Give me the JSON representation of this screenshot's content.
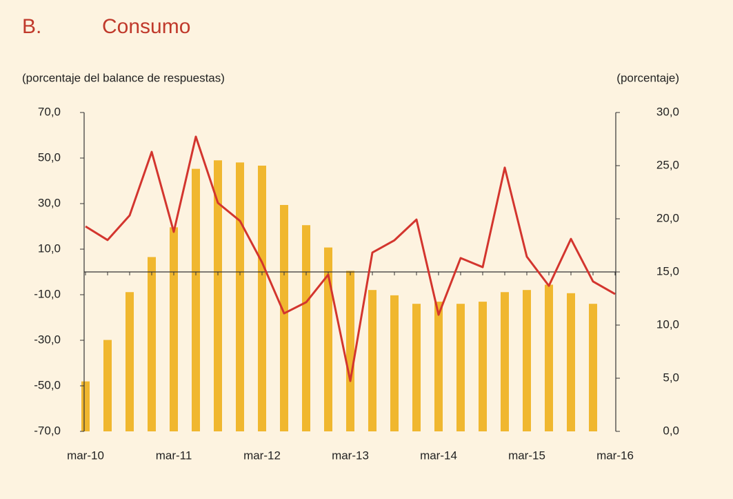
{
  "chart_data": {
    "type": "bar_line",
    "panel": "B.",
    "title": "Consumo",
    "y_label": "(porcentaje del balance de respuestas)",
    "y2_label": "(porcentaje)",
    "categories": [
      "mar-10",
      null,
      null,
      null,
      "mar-11",
      null,
      null,
      null,
      "mar-12",
      null,
      null,
      null,
      "mar-13",
      null,
      null,
      null,
      "mar-14",
      null,
      null,
      null,
      "mar-15",
      null,
      null,
      null,
      "mar-16"
    ],
    "ylim": [
      -70,
      70
    ],
    "yticks": [
      {
        "value": -70,
        "label": "-70,0"
      },
      {
        "value": -50,
        "label": "-50,0"
      },
      {
        "value": -30,
        "label": "-30,0"
      },
      {
        "value": -10,
        "label": "-10,0"
      },
      {
        "value": 10,
        "label": "10,0"
      },
      {
        "value": 30,
        "label": "30,0"
      },
      {
        "value": 50,
        "label": "50,0"
      },
      {
        "value": 70,
        "label": "70,0"
      }
    ],
    "y2lim": [
      0,
      30
    ],
    "y2ticks": [
      {
        "value": 0,
        "label": "0,0"
      },
      {
        "value": 5,
        "label": "5,0"
      },
      {
        "value": 10,
        "label": "10,0"
      },
      {
        "value": 15,
        "label": "15,0"
      },
      {
        "value": 20,
        "label": "20,0"
      },
      {
        "value": 25,
        "label": "25,0"
      },
      {
        "value": 30,
        "label": "30,0"
      }
    ],
    "series": [
      {
        "kind": "bar",
        "axis": "y2",
        "color": "#f0b72f",
        "values": [
          4.7,
          8.6,
          13.1,
          16.4,
          19.2,
          24.7,
          25.5,
          25.3,
          25.0,
          21.3,
          19.4,
          17.3,
          15.1,
          13.3,
          12.8,
          12.0,
          12.2,
          12.0,
          12.2,
          13.1,
          13.3,
          13.8,
          13.0,
          12.0,
          null
        ]
      },
      {
        "kind": "line",
        "axis": "y",
        "color": "#d3352e",
        "values": [
          20.0,
          14.0,
          24.8,
          52.7,
          17.6,
          59.4,
          30.3,
          22.4,
          4.2,
          -18.2,
          -13.3,
          -1.2,
          -47.9,
          8.5,
          13.9,
          23.0,
          -18.8,
          6.1,
          2.1,
          45.8,
          6.7,
          -6.1,
          14.5,
          -4.2,
          -9.7
        ]
      }
    ]
  }
}
